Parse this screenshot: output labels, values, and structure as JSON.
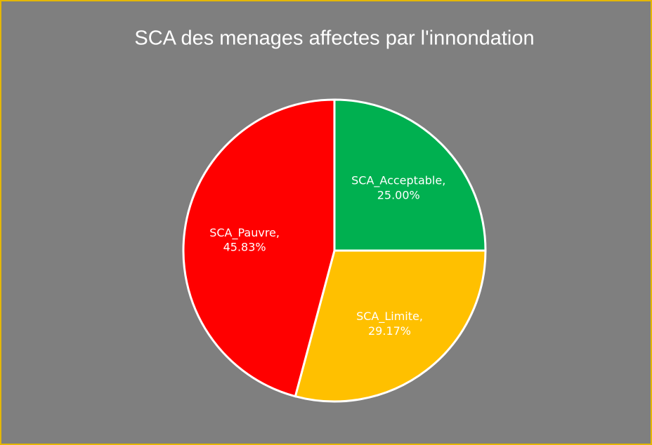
{
  "chart_data": {
    "type": "pie",
    "title": "SCA des menages affectes par l'innondation",
    "categories": [
      "SCA_Acceptable,",
      "SCA_Limite,",
      "SCA_Pauvre,"
    ],
    "values": [
      25.0,
      29.17,
      45.83
    ],
    "value_labels": [
      "25.00%",
      "29.17%",
      "45.83%"
    ],
    "colors": [
      "#00b050",
      "#ffc000",
      "#ff0000"
    ]
  }
}
